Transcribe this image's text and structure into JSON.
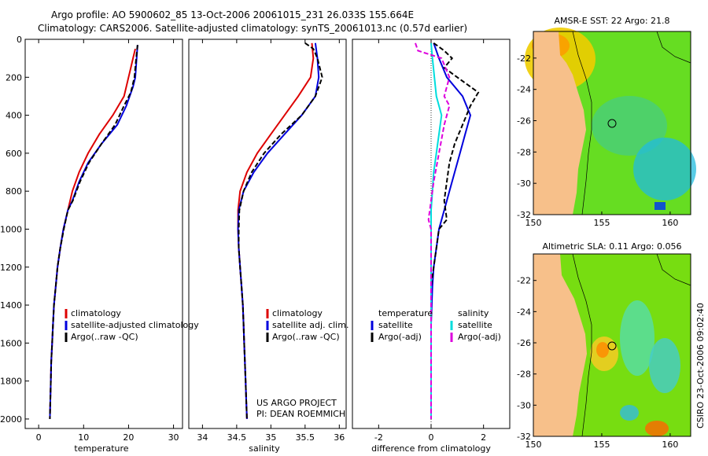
{
  "title_line1": "Argo profile: AO 5900602_85 13-Oct-2006 20061015_231 26.033S 155.664E",
  "title_line2": "Climatology: CARS2006. Satellite-adjusted climatology: synTS_20061013.nc (0.57d earlier)",
  "chart_data": [
    {
      "type": "line",
      "id": "temperature",
      "xlabel": "temperature",
      "xlim": [
        -3,
        32
      ],
      "ylim": [
        0,
        2050
      ],
      "xticks": [
        0,
        10,
        20,
        30
      ],
      "yticks": [
        0,
        200,
        400,
        600,
        800,
        1000,
        1200,
        1400,
        1600,
        1800,
        2000
      ],
      "series": [
        {
          "name": "climatology",
          "color": "#dd0000",
          "dash": "",
          "points": [
            [
              21.5,
              50
            ],
            [
              21,
              100
            ],
            [
              20.5,
              150
            ],
            [
              20,
              200
            ],
            [
              19,
              300
            ],
            [
              16.5,
              400
            ],
            [
              13.5,
              500
            ],
            [
              11,
              600
            ],
            [
              9,
              700
            ],
            [
              7.5,
              800
            ],
            [
              6.5,
              900
            ],
            [
              5.5,
              1000
            ],
            [
              4.8,
              1100
            ],
            [
              4.2,
              1200
            ],
            [
              3.8,
              1300
            ],
            [
              3.4,
              1400
            ],
            [
              3.2,
              1500
            ],
            [
              3,
              1600
            ],
            [
              2.8,
              1700
            ],
            [
              2.7,
              1800
            ],
            [
              2.6,
              1900
            ],
            [
              2.5,
              2000
            ]
          ]
        },
        {
          "name": "satellite-adjusted climatology",
          "color": "#0000dd",
          "dash": "",
          "points": [
            [
              22,
              30
            ],
            [
              21.8,
              100
            ],
            [
              21.5,
              200
            ],
            [
              21,
              250
            ],
            [
              19.5,
              350
            ],
            [
              17.5,
              450
            ],
            [
              14,
              550
            ],
            [
              11,
              650
            ],
            [
              9,
              750
            ],
            [
              7.5,
              850
            ],
            [
              6.5,
              900
            ],
            [
              5.5,
              1000
            ],
            [
              4.8,
              1100
            ],
            [
              4.2,
              1200
            ],
            [
              3.8,
              1300
            ],
            [
              3.4,
              1400
            ],
            [
              3.2,
              1500
            ],
            [
              3,
              1600
            ],
            [
              2.8,
              1700
            ],
            [
              2.7,
              1800
            ],
            [
              2.6,
              1900
            ],
            [
              2.5,
              2000
            ]
          ]
        },
        {
          "name": "Argo(..raw -QC)",
          "color": "#000000",
          "dash": "6,3",
          "points": [
            [
              22,
              30
            ],
            [
              21.7,
              100
            ],
            [
              21.3,
              200
            ],
            [
              20.5,
              280
            ],
            [
              19,
              350
            ],
            [
              17,
              450
            ],
            [
              14,
              550
            ],
            [
              11.2,
              650
            ],
            [
              9.2,
              750
            ],
            [
              7.6,
              850
            ],
            [
              6.5,
              900
            ],
            [
              5.6,
              1000
            ],
            [
              4.8,
              1100
            ],
            [
              4.2,
              1200
            ],
            [
              3.8,
              1300
            ],
            [
              3.4,
              1400
            ],
            [
              3.2,
              1500
            ],
            [
              3,
              1600
            ],
            [
              2.8,
              1700
            ],
            [
              2.7,
              1800
            ],
            [
              2.6,
              1900
            ],
            [
              2.5,
              2000
            ]
          ]
        }
      ],
      "legend": [
        "climatology",
        "satellite-adjusted climatology",
        "Argo(..raw -QC)"
      ]
    },
    {
      "type": "line",
      "id": "salinity",
      "xlabel": "salinity",
      "xlim": [
        33.8,
        36.1
      ],
      "ylim": [
        0,
        2050
      ],
      "xticks": [
        34,
        34.5,
        35,
        35.5,
        36
      ],
      "yticks": [],
      "series": [
        {
          "name": "climatology",
          "color": "#dd0000",
          "dash": "",
          "points": [
            [
              35.6,
              20
            ],
            [
              35.62,
              100
            ],
            [
              35.58,
              200
            ],
            [
              35.4,
              300
            ],
            [
              35.2,
              400
            ],
            [
              35,
              500
            ],
            [
              34.8,
              600
            ],
            [
              34.65,
              700
            ],
            [
              34.55,
              800
            ],
            [
              34.52,
              900
            ],
            [
              34.52,
              1000
            ],
            [
              34.53,
              1100
            ],
            [
              34.55,
              1200
            ],
            [
              34.57,
              1300
            ],
            [
              34.59,
              1400
            ],
            [
              34.6,
              1500
            ],
            [
              34.61,
              1600
            ],
            [
              34.62,
              1700
            ],
            [
              34.63,
              1800
            ],
            [
              34.64,
              1900
            ],
            [
              34.65,
              2000
            ]
          ]
        },
        {
          "name": "satellite adj. clim.",
          "color": "#0000dd",
          "dash": "",
          "points": [
            [
              35.65,
              20
            ],
            [
              35.68,
              100
            ],
            [
              35.7,
              200
            ],
            [
              35.65,
              300
            ],
            [
              35.45,
              400
            ],
            [
              35.2,
              500
            ],
            [
              34.95,
              600
            ],
            [
              34.75,
              700
            ],
            [
              34.6,
              800
            ],
            [
              34.53,
              900
            ],
            [
              34.52,
              1000
            ],
            [
              34.53,
              1100
            ],
            [
              34.55,
              1200
            ],
            [
              34.57,
              1300
            ],
            [
              34.59,
              1400
            ],
            [
              34.6,
              1500
            ],
            [
              34.61,
              1600
            ],
            [
              34.62,
              1700
            ],
            [
              34.63,
              1800
            ],
            [
              34.64,
              1900
            ],
            [
              34.65,
              2000
            ]
          ]
        },
        {
          "name": "Argo(..raw -QC)",
          "color": "#000000",
          "dash": "6,3",
          "points": [
            [
              35.5,
              20
            ],
            [
              35.62,
              50
            ],
            [
              35.68,
              100
            ],
            [
              35.75,
              200
            ],
            [
              35.65,
              300
            ],
            [
              35.45,
              400
            ],
            [
              35.15,
              500
            ],
            [
              34.9,
              600
            ],
            [
              34.72,
              700
            ],
            [
              34.6,
              800
            ],
            [
              34.54,
              900
            ],
            [
              34.53,
              1000
            ],
            [
              34.53,
              1100
            ],
            [
              34.55,
              1200
            ],
            [
              34.57,
              1300
            ],
            [
              34.59,
              1400
            ],
            [
              34.6,
              1500
            ],
            [
              34.61,
              1600
            ],
            [
              34.62,
              1700
            ],
            [
              34.63,
              1800
            ],
            [
              34.64,
              1900
            ],
            [
              34.65,
              2000
            ]
          ]
        }
      ],
      "legend": [
        "climatology",
        "satellite adj. clim.",
        "Argo(..raw -QC)"
      ],
      "annotation": [
        "US ARGO PROJECT",
        "PI: DEAN ROEMMICH"
      ]
    },
    {
      "type": "line",
      "id": "difference",
      "xlabel": "difference from climatology",
      "xlim": [
        -3,
        3
      ],
      "ylim": [
        0,
        2050
      ],
      "xticks": [
        -2,
        0,
        2
      ],
      "yticks": [],
      "series": [
        {
          "name": "satellite (temperature)",
          "color": "#0000dd",
          "dash": "",
          "points": [
            [
              0.1,
              20
            ],
            [
              0.3,
              100
            ],
            [
              0.6,
              200
            ],
            [
              1.2,
              300
            ],
            [
              1.5,
              400
            ],
            [
              1.3,
              500
            ],
            [
              1.1,
              600
            ],
            [
              0.9,
              700
            ],
            [
              0.7,
              800
            ],
            [
              0.5,
              900
            ],
            [
              0.3,
              1000
            ],
            [
              0.2,
              1100
            ],
            [
              0.1,
              1200
            ],
            [
              0.05,
              1300
            ],
            [
              0,
              1500
            ],
            [
              0,
              2000
            ]
          ]
        },
        {
          "name": "Argo(-adj) (temperature)",
          "color": "#000000",
          "dash": "6,3",
          "points": [
            [
              0.1,
              20
            ],
            [
              0.5,
              60
            ],
            [
              0.8,
              100
            ],
            [
              0.5,
              150
            ],
            [
              1,
              200
            ],
            [
              1.8,
              280
            ],
            [
              1.5,
              350
            ],
            [
              1.2,
              450
            ],
            [
              0.9,
              550
            ],
            [
              0.7,
              650
            ],
            [
              0.6,
              750
            ],
            [
              0.5,
              850
            ],
            [
              0.6,
              950
            ],
            [
              0.3,
              1000
            ],
            [
              0.2,
              1100
            ],
            [
              0.1,
              1200
            ],
            [
              0,
              1300
            ],
            [
              0,
              2000
            ]
          ]
        },
        {
          "name": "satellite (salinity)",
          "color": "#00dddd",
          "dash": "",
          "points": [
            [
              0,
              20
            ],
            [
              0.05,
              100
            ],
            [
              0.2,
              300
            ],
            [
              0.4,
              400
            ],
            [
              0.3,
              500
            ],
            [
              0.2,
              600
            ],
            [
              0.1,
              700
            ],
            [
              0.05,
              800
            ],
            [
              0,
              900
            ],
            [
              0,
              2000
            ]
          ]
        },
        {
          "name": "Argo(-adj) (salinity)",
          "color": "#dd00dd",
          "dash": "6,3",
          "points": [
            [
              -0.6,
              20
            ],
            [
              -0.5,
              60
            ],
            [
              0.4,
              100
            ],
            [
              0.7,
              200
            ],
            [
              0.5,
              300
            ],
            [
              0.7,
              350
            ],
            [
              0.5,
              450
            ],
            [
              0.3,
              600
            ],
            [
              0.1,
              750
            ],
            [
              0,
              850
            ],
            [
              -0.1,
              950
            ],
            [
              0,
              1000
            ],
            [
              0,
              2000
            ]
          ]
        }
      ],
      "legend_headers": [
        "temperature",
        "salinity"
      ],
      "legend": [
        "satellite",
        "Argo(-adj)",
        "satellite",
        "Argo(-adj)"
      ]
    },
    {
      "type": "heatmap",
      "id": "sst_map",
      "title": "AMSR-E SST: 22 Argo: 21.8",
      "xticks": [
        150,
        155,
        160
      ],
      "yticks": [
        -22,
        -24,
        -26,
        -28,
        -30,
        -32
      ],
      "xlim": [
        150,
        161.5
      ],
      "ylim": [
        -32,
        -20.3
      ],
      "marker": [
        155.664,
        -26.033
      ]
    },
    {
      "type": "heatmap",
      "id": "sla_map",
      "title": "Altimetric SLA: 0.11 Argo: 0.056",
      "xticks": [
        150,
        155,
        160
      ],
      "yticks": [
        -22,
        -24,
        -26,
        -28,
        -30,
        -32
      ],
      "xlim": [
        150,
        161.5
      ],
      "ylim": [
        -32,
        -20.3
      ],
      "marker": [
        155.664,
        -26.033
      ]
    }
  ],
  "credit": "CSIRO 23-Oct-2006 09:02:40",
  "colors": {
    "land": "#f7c08a",
    "sst_base": "#66dd22",
    "sla_base": "#77dd11"
  }
}
